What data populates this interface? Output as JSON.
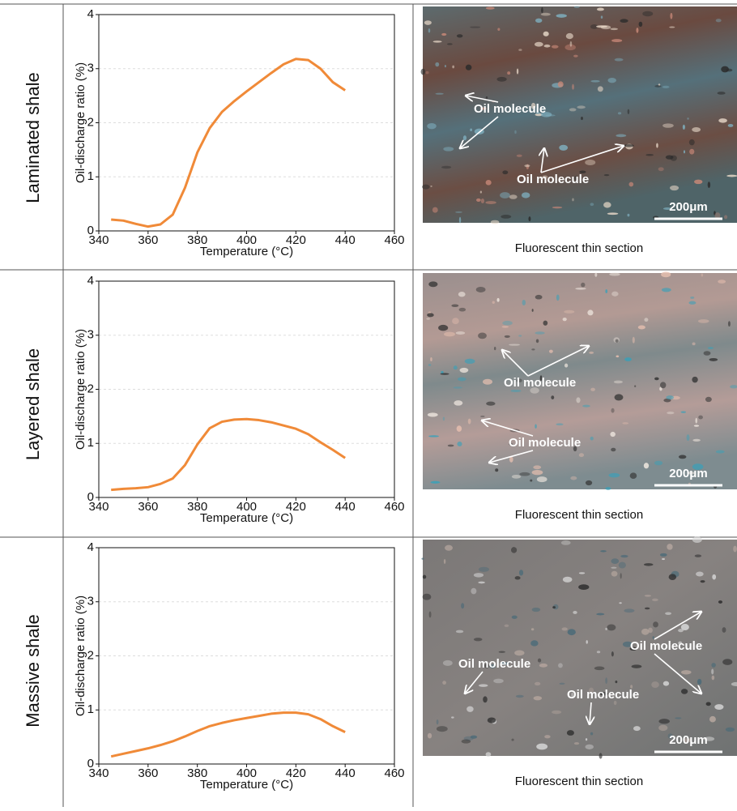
{
  "chart_data": [
    {
      "type": "line",
      "row_label": "Laminated shale",
      "y_label": "Oil-discharge ratio (%)",
      "x_label": "Temperature (°C)",
      "x": [
        345,
        350,
        355,
        360,
        365,
        370,
        375,
        380,
        385,
        390,
        395,
        400,
        405,
        410,
        415,
        420,
        425,
        430,
        435,
        440
      ],
      "series": [
        {
          "color": "#f08a38",
          "values": [
            0.21,
            0.19,
            0.13,
            0.08,
            0.12,
            0.3,
            0.8,
            1.45,
            1.9,
            2.2,
            2.4,
            2.58,
            2.75,
            2.92,
            3.08,
            3.18,
            3.16,
            3.0,
            2.75,
            2.6
          ]
        }
      ],
      "xlim": [
        340,
        460
      ],
      "ylim": [
        0,
        4
      ],
      "xticks": [
        340,
        360,
        380,
        400,
        420,
        440,
        460
      ],
      "yticks": [
        0,
        1,
        2,
        3,
        4
      ],
      "grid": true,
      "image": {
        "caption": "Fluorescent thin section",
        "scale_bar": "200μm",
        "annotations": [
          "Oil molecule",
          "Oil molecule"
        ]
      }
    },
    {
      "type": "line",
      "row_label": "Layered shale",
      "y_label": "Oil-discharge ratio (%)",
      "x_label": "Temperature (°C)",
      "x": [
        345,
        350,
        355,
        360,
        365,
        370,
        375,
        380,
        385,
        390,
        395,
        400,
        405,
        410,
        415,
        420,
        425,
        430,
        435,
        440
      ],
      "series": [
        {
          "color": "#f08a38",
          "values": [
            0.14,
            0.16,
            0.17,
            0.19,
            0.25,
            0.35,
            0.6,
            0.98,
            1.28,
            1.4,
            1.44,
            1.45,
            1.43,
            1.39,
            1.33,
            1.27,
            1.17,
            1.02,
            0.88,
            0.73
          ]
        }
      ],
      "xlim": [
        340,
        460
      ],
      "ylim": [
        0,
        4
      ],
      "xticks": [
        340,
        360,
        380,
        400,
        420,
        440,
        460
      ],
      "yticks": [
        0,
        1,
        2,
        3,
        4
      ],
      "grid": true,
      "image": {
        "caption": "Fluorescent thin section",
        "scale_bar": "200μm",
        "annotations": [
          "Oil molecule",
          "Oil molecule"
        ]
      }
    },
    {
      "type": "line",
      "row_label": "Massive shale",
      "y_label": "Oil-discharge ratio (%)",
      "x_label": "Temperature (°C)",
      "x": [
        345,
        350,
        355,
        360,
        365,
        370,
        375,
        380,
        385,
        390,
        395,
        400,
        405,
        410,
        415,
        420,
        425,
        430,
        435,
        440
      ],
      "series": [
        {
          "color": "#f08a38",
          "values": [
            0.14,
            0.19,
            0.24,
            0.29,
            0.35,
            0.42,
            0.51,
            0.61,
            0.7,
            0.76,
            0.81,
            0.85,
            0.89,
            0.93,
            0.95,
            0.95,
            0.92,
            0.83,
            0.7,
            0.59
          ]
        }
      ],
      "xlim": [
        340,
        460
      ],
      "ylim": [
        0,
        4
      ],
      "xticks": [
        340,
        360,
        380,
        400,
        420,
        440,
        460
      ],
      "yticks": [
        0,
        1,
        2,
        3,
        4
      ],
      "grid": true,
      "image": {
        "caption": "Fluorescent thin section",
        "scale_bar": "200μm",
        "annotations": [
          "Oil molecule",
          "Oil molecule",
          "Oil molecule"
        ]
      }
    }
  ]
}
